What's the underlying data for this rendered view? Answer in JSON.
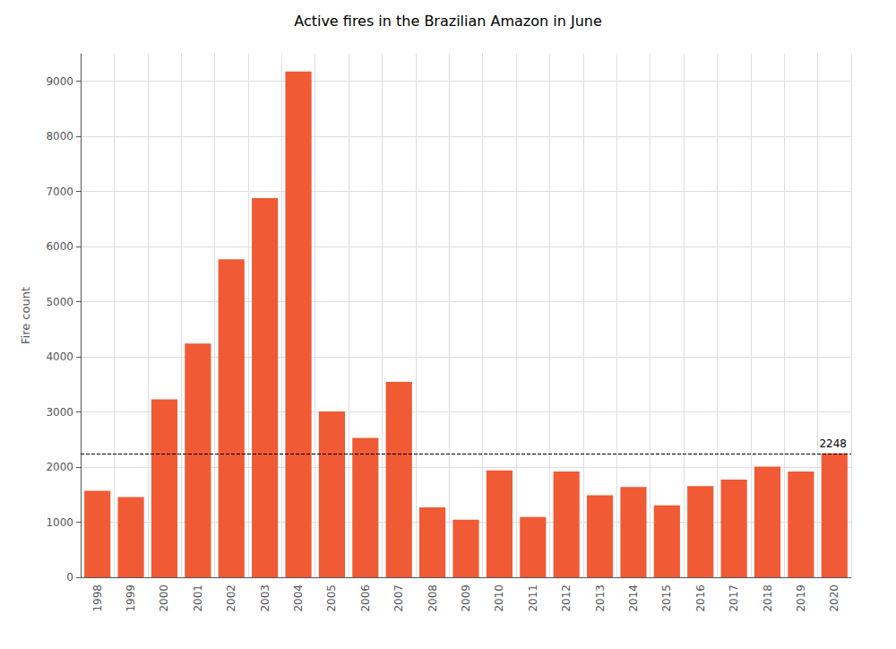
{
  "chart_data": {
    "type": "bar",
    "title": "Active fires in the Brazilian Amazon in June",
    "ylabel": "Fire count",
    "categories": [
      "1998",
      "1999",
      "2000",
      "2001",
      "2002",
      "2003",
      "2004",
      "2005",
      "2006",
      "2007",
      "2008",
      "2009",
      "2010",
      "2011",
      "2012",
      "2013",
      "2014",
      "2015",
      "2016",
      "2017",
      "2018",
      "2019",
      "2020"
    ],
    "values": [
      1570,
      1455,
      3230,
      4240,
      5770,
      6880,
      9180,
      3010,
      2530,
      3545,
      1270,
      1045,
      1940,
      1095,
      1920,
      1490,
      1640,
      1305,
      1655,
      1775,
      2010,
      1920,
      2248
    ],
    "color": "#F05A35",
    "ylim": [
      0,
      9500
    ],
    "yticks": [
      0,
      1000,
      2000,
      3000,
      4000,
      5000,
      6000,
      7000,
      8000,
      9000
    ],
    "grid": true,
    "annotations": [
      {
        "type": "hline",
        "y": 2248,
        "text": "2248",
        "line_style": "dashed",
        "color": "#000000"
      }
    ]
  }
}
